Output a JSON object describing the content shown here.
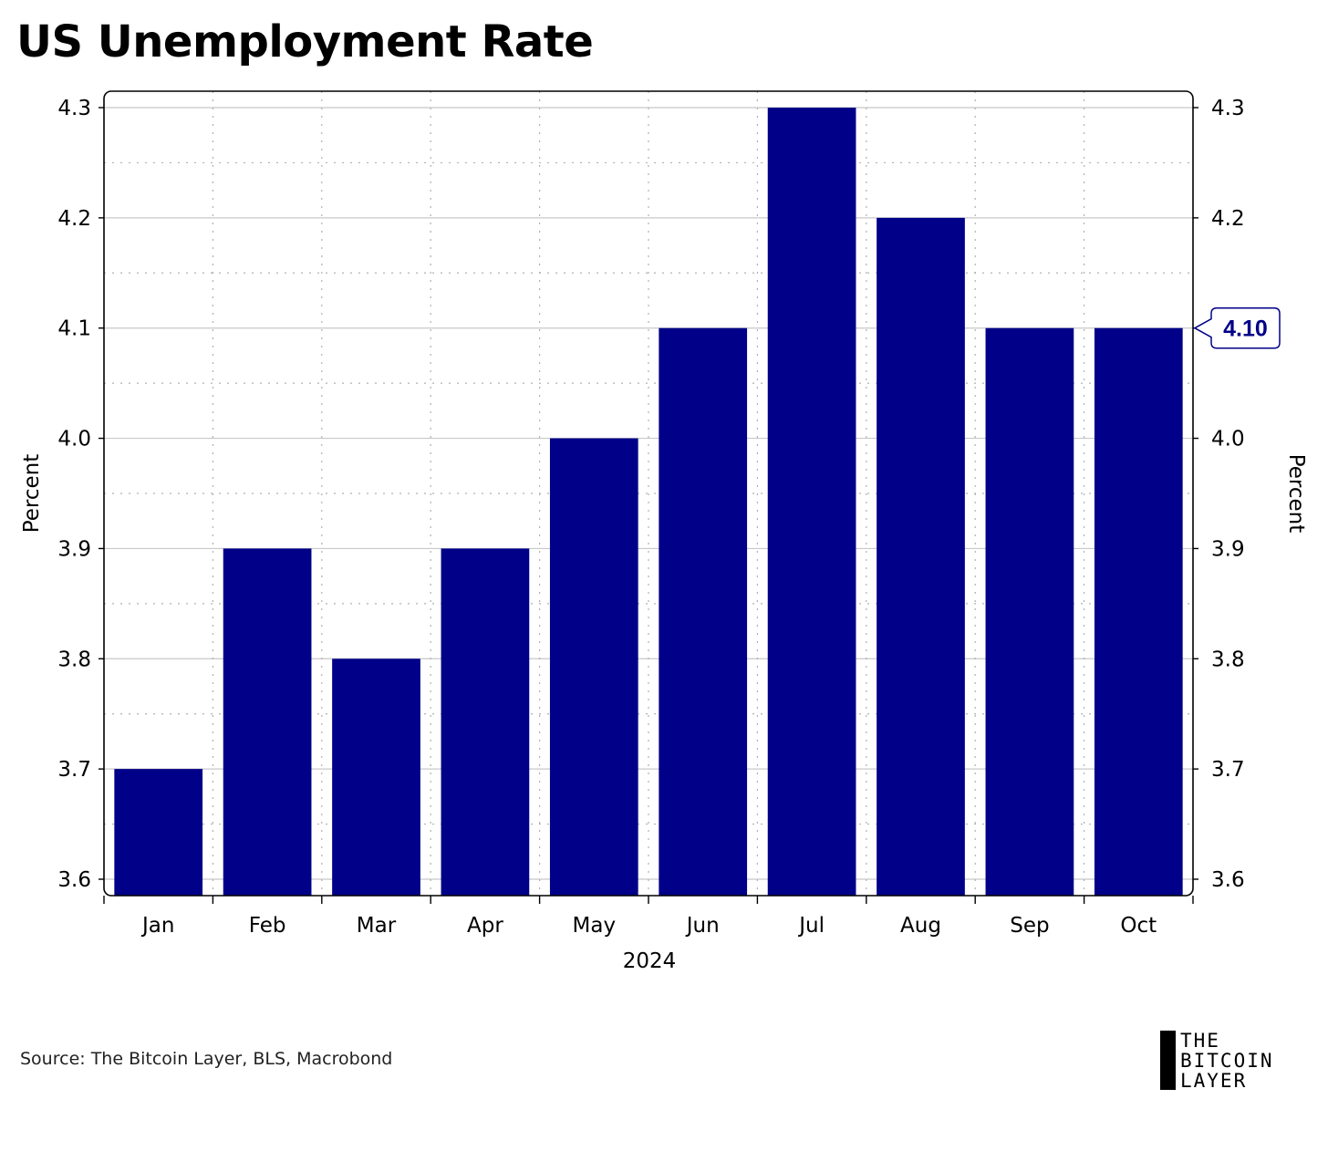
{
  "title": "US Unemployment Rate",
  "source": "Source: The Bitcoin Layer, BLS, Macrobond",
  "logo": {
    "lines": [
      "THE",
      "BITCOIN",
      "LAYER"
    ],
    "icon": "logo-bar-icon"
  },
  "colors": {
    "bar": "#000088",
    "callout_text": "#000088",
    "grid": "#c8c8c8"
  },
  "chart_data": {
    "type": "bar",
    "categories": [
      "Jan",
      "Feb",
      "Mar",
      "Apr",
      "May",
      "Jun",
      "Jul",
      "Aug",
      "Sep",
      "Oct"
    ],
    "values": [
      3.7,
      3.9,
      3.8,
      3.9,
      4.0,
      4.1,
      4.3,
      4.2,
      4.1,
      4.1
    ],
    "title": "US Unemployment Rate",
    "xlabel": "2024",
    "ylabel": "Percent",
    "ylabel_right": "Percent",
    "ylim": [
      3.6,
      4.3
    ],
    "yticks": [
      "3.6",
      "3.7",
      "3.8",
      "3.9",
      "4.0",
      "4.1",
      "4.2",
      "4.3"
    ],
    "grid": true,
    "last_value_label": "4.10"
  }
}
